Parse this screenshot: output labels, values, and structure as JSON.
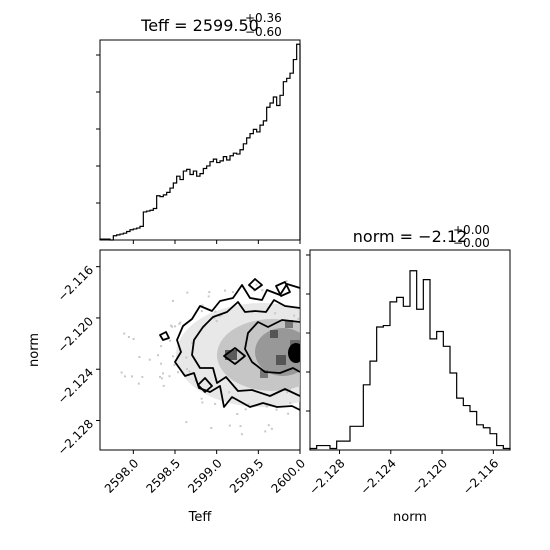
{
  "chart_data": {
    "type": "corner",
    "parameters": [
      "Teff",
      "norm"
    ],
    "titles": {
      "teff": {
        "prefix": "Teff = ",
        "value": "2599.50",
        "plus": "+0.36",
        "minus": "−0.60"
      },
      "norm": {
        "prefix": "norm = ",
        "value": "−2.12",
        "plus": "+0.00",
        "minus": "−0.00"
      }
    },
    "axis_labels": {
      "teff": "Teff",
      "norm": "norm"
    },
    "teff_range": [
      2597.6,
      2600.0
    ],
    "norm_range": [
      -2.1303,
      -2.1147
    ],
    "teff_ticks": [
      {
        "value": 2598.0,
        "label": "2598.0"
      },
      {
        "value": 2598.5,
        "label": "2598.5"
      },
      {
        "value": 2599.0,
        "label": "2599.0"
      },
      {
        "value": 2599.5,
        "label": "2599.5"
      },
      {
        "value": 2600.0,
        "label": "2600.0"
      }
    ],
    "norm_ticks": [
      {
        "value": -2.128,
        "label": "−2.128"
      },
      {
        "value": -2.124,
        "label": "−2.124"
      },
      {
        "value": -2.12,
        "label": "−2.120"
      },
      {
        "value": -2.116,
        "label": "−2.116"
      }
    ],
    "teff_hist": {
      "range": [
        2597.6,
        2600.0
      ],
      "counts": [
        1,
        1,
        1,
        0,
        5,
        6,
        7,
        8,
        10,
        12,
        13,
        14,
        16,
        33,
        34,
        35,
        37,
        52,
        51,
        53,
        56,
        61,
        67,
        75,
        71,
        81,
        83,
        77,
        81,
        75,
        78,
        84,
        87,
        92,
        95,
        91,
        93,
        98,
        94,
        99,
        102,
        101,
        106,
        113,
        120,
        125,
        130,
        127,
        135,
        140,
        156,
        161,
        168,
        158,
        170,
        186,
        190,
        196,
        212,
        230
      ],
      "ymax": 235
    },
    "norm_hist": {
      "range": [
        -2.1303,
        -2.1147
      ],
      "counts": [
        1,
        3,
        3,
        1,
        6,
        6,
        16,
        16,
        44,
        60,
        83,
        84,
        100,
        103,
        97,
        121,
        95,
        115,
        75,
        80,
        70,
        52,
        35,
        30,
        26,
        17,
        15,
        11,
        3,
        1
      ],
      "ymax": 135
    },
    "grid": false,
    "legend": "none"
  }
}
